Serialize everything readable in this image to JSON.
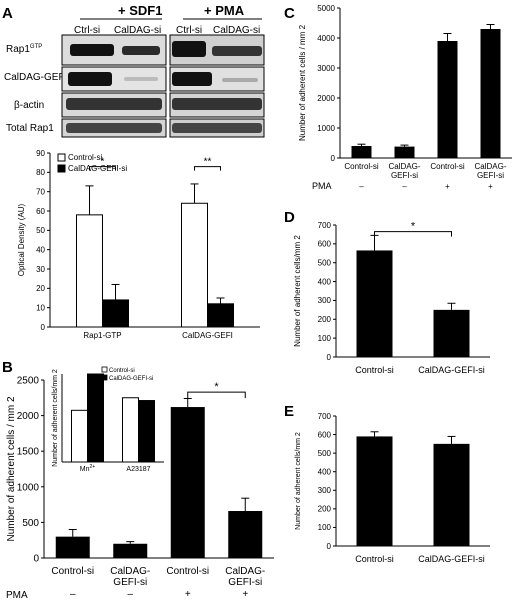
{
  "panels": {
    "A": {
      "letter": "A",
      "blot": {
        "condition_labels": [
          "+ SDF1",
          "+ PMA"
        ],
        "lane_labels": [
          "Ctrl-si",
          "CalDAG-si",
          "Ctrl-si",
          "CalDAG-si"
        ],
        "row_labels": [
          "Rap1",
          "CalDAG-GEFI",
          "β-actin",
          "Total Rap1"
        ],
        "rap1_superscript": "GTP"
      }
    },
    "B": {
      "letter": "B"
    },
    "C": {
      "letter": "C"
    },
    "D": {
      "letter": "D"
    },
    "E": {
      "letter": "E"
    },
    "pma_label": "PMA",
    "pma_signs": [
      "–",
      "–",
      "+",
      "+"
    ]
  },
  "chart_data": [
    {
      "id": "A",
      "type": "bar",
      "ylabel": "Optical Density (AU)",
      "ylim": [
        0,
        90
      ],
      "yticks": [
        0,
        10,
        20,
        30,
        40,
        50,
        60,
        70,
        80,
        90
      ],
      "categories": [
        "Rap1-GTP",
        "CalDAG-GEFI"
      ],
      "legend": "top-left",
      "series": [
        {
          "name": "Control-si",
          "values": [
            58,
            64
          ],
          "errors": [
            15,
            10
          ],
          "color": "#ffffff"
        },
        {
          "name": "CalDAG-GEFI-si",
          "values": [
            14,
            12
          ],
          "errors": [
            8,
            3
          ],
          "color": "#000000"
        }
      ],
      "significance": [
        "*",
        "**"
      ]
    },
    {
      "id": "B",
      "type": "bar",
      "ylabel": "Number of adherent cells / mm 2",
      "ylim": [
        0,
        2500
      ],
      "yticks": [
        0,
        500,
        1000,
        1500,
        2000,
        2500
      ],
      "categories": [
        "Control-si",
        "CalDAG-GEFI-si",
        "Control-si",
        "CalDAG-GEFI-si"
      ],
      "values": [
        300,
        200,
        2120,
        660
      ],
      "errors": [
        100,
        30,
        120,
        180
      ],
      "significance": "*"
    },
    {
      "id": "B-inset",
      "type": "bar",
      "ylabel": "Number of adherent cells/mm 2",
      "categories": [
        "Mn2+",
        "A23187"
      ],
      "series": [
        {
          "name": "Control-si",
          "values": [
            1480,
            1840
          ],
          "color": "#ffffff"
        },
        {
          "name": "CalDAG-GEFI-si",
          "values": [
            2520,
            1760
          ],
          "color": "#000000"
        }
      ],
      "legend": "top-left"
    },
    {
      "id": "C",
      "type": "bar",
      "ylabel": "Number of adherent cells / mm 2",
      "ylim": [
        0,
        5000
      ],
      "yticks": [
        0,
        1000,
        2000,
        3000,
        4000,
        5000
      ],
      "categories": [
        "Control-si",
        "CalDAG-GEFI-si",
        "Control-si",
        "CalDAG-GEFI-si"
      ],
      "values": [
        400,
        380,
        3900,
        4300
      ],
      "errors": [
        60,
        50,
        250,
        150
      ]
    },
    {
      "id": "D",
      "type": "bar",
      "ylabel": "Number of adherent cells/mm 2",
      "ylim": [
        0,
        700
      ],
      "yticks": [
        0,
        100,
        200,
        300,
        400,
        500,
        600,
        700
      ],
      "categories": [
        "Control-si",
        "CalDAG-GEFI-si"
      ],
      "values": [
        565,
        250
      ],
      "errors": [
        80,
        35
      ],
      "significance": "*"
    },
    {
      "id": "E",
      "type": "bar",
      "ylabel": "Number of adherent cells/mm 2",
      "ylim": [
        0,
        700
      ],
      "yticks": [
        0,
        100,
        200,
        300,
        400,
        500,
        600,
        700
      ],
      "categories": [
        "Control-si",
        "CalDAG-GEFI-si"
      ],
      "values": [
        590,
        550
      ],
      "errors": [
        25,
        40
      ]
    }
  ]
}
